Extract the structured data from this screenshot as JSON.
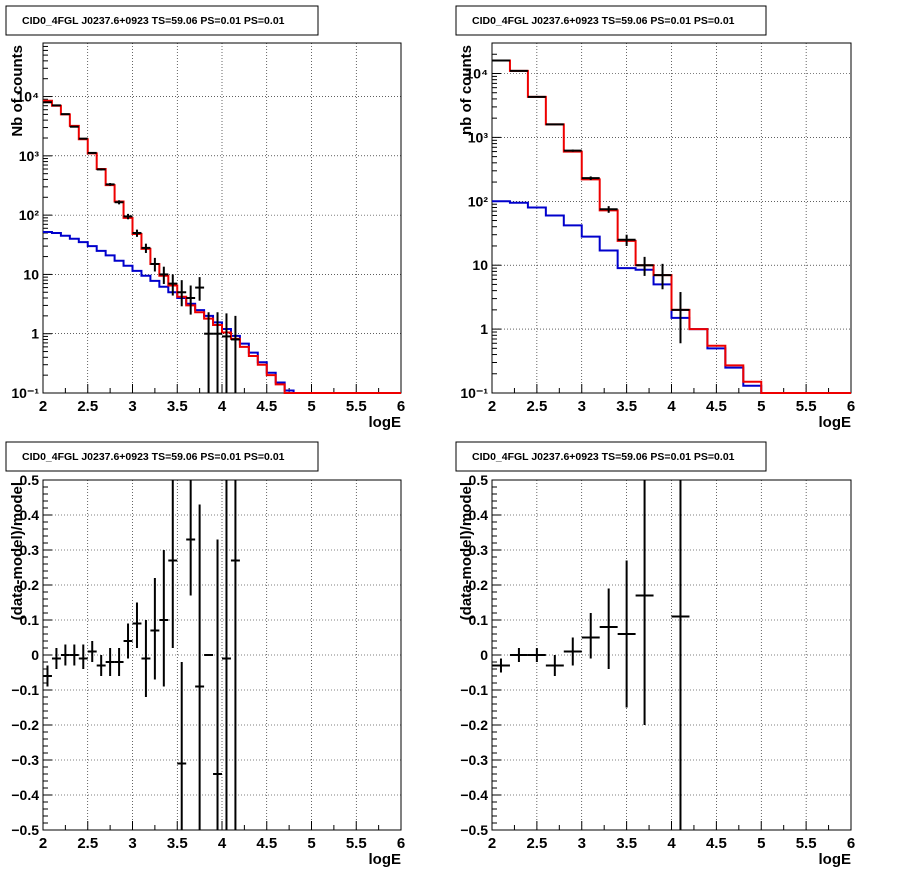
{
  "chart_data": [
    {
      "type": "line",
      "title": "CID0_4FGL J0237.6+0923 TS=59.06 PS=0.01 PS=0.01",
      "xlabel": "logE",
      "ylabel": "Nb of counts",
      "xlim": [
        2,
        6
      ],
      "ylim": [
        0.1,
        80000
      ],
      "yscale": "log",
      "grid": true,
      "x_ticks": [
        "2",
        "2.5",
        "3",
        "3.5",
        "4",
        "4.5",
        "5",
        "5.5",
        "6"
      ],
      "y_ticks": [
        "10⁻¹",
        "1",
        "10",
        "10²",
        "10³",
        "10⁴"
      ],
      "bin_edges": [
        2.0,
        2.1,
        2.2,
        2.3,
        2.4,
        2.5,
        2.6,
        2.7,
        2.8,
        2.9,
        3.0,
        3.1,
        3.2,
        3.3,
        3.4,
        3.5,
        3.6,
        3.7,
        3.8,
        3.9,
        4.0,
        4.1,
        4.2,
        4.3,
        4.4,
        4.5,
        4.6,
        4.7,
        4.8,
        4.9,
        5.0,
        5.1,
        5.2,
        5.3,
        5.4,
        5.5,
        5.6,
        5.7,
        5.8,
        5.9,
        6.0
      ],
      "series": [
        {
          "color": "#0000cc",
          "style": "hist",
          "values": [
            52,
            50,
            45,
            40,
            35,
            30,
            25,
            21,
            17,
            14,
            11.5,
            9.5,
            7.8,
            6.2,
            5.0,
            4.0,
            3.2,
            2.5,
            2.0,
            1.55,
            1.2,
            0.92,
            0.68,
            0.48,
            0.33,
            0.22,
            0.15,
            0.11,
            0.1,
            0.1,
            0.1,
            0.1,
            0.1,
            0.1,
            0.1,
            0.1,
            0.1,
            0.1,
            0.1,
            0.1
          ]
        },
        {
          "color": "#ee0000",
          "style": "hist",
          "values": [
            8500,
            7000,
            5000,
            3200,
            1900,
            1100,
            600,
            320,
            170,
            90,
            48,
            27,
            15,
            9.5,
            6.5,
            4.2,
            3.0,
            2.3,
            1.8,
            1.4,
            1.05,
            0.82,
            0.6,
            0.42,
            0.3,
            0.2,
            0.14,
            0.1,
            0.1,
            0.1,
            0.1,
            0.1,
            0.1,
            0.1,
            0.1,
            0.1,
            0.1,
            0.1,
            0.1,
            0.1
          ]
        },
        {
          "color": "#000000",
          "style": "errorbar",
          "x": [
            2.05,
            2.15,
            2.25,
            2.35,
            2.45,
            2.55,
            2.65,
            2.75,
            2.85,
            2.95,
            3.05,
            3.15,
            3.25,
            3.35,
            3.45,
            3.55,
            3.65,
            3.75,
            3.85,
            3.95,
            4.05,
            4.15
          ],
          "y": [
            8000,
            7100,
            5050,
            3100,
            1950,
            1120,
            590,
            330,
            165,
            95,
            50,
            28,
            15,
            10,
            7,
            5,
            4,
            6,
            1.0,
            1.0,
            0.9,
            0.8
          ],
          "ylo": [
            7900,
            7000,
            4950,
            3040,
            1905,
            1085,
            566,
            312,
            152,
            85,
            43,
            23,
            11.2,
            6.9,
            4.4,
            2.9,
            2.1,
            3.6,
            0.1,
            0.1,
            0.1,
            0.1
          ],
          "yhi": [
            8100,
            7200,
            5150,
            3160,
            1995,
            1155,
            614,
            348,
            178,
            105,
            57,
            33,
            19,
            13.5,
            10,
            8,
            6.5,
            9,
            2.3,
            2.3,
            2.2,
            2.0
          ]
        }
      ]
    },
    {
      "type": "line",
      "title": "CID0_4FGL J0237.6+0923 TS=59.06 PS=0.01 PS=0.01",
      "xlabel": "logE",
      "ylabel": "nb of counts",
      "xlim": [
        2,
        6
      ],
      "ylim": [
        0.1,
        30000
      ],
      "yscale": "log",
      "grid": true,
      "x_ticks": [
        "2",
        "2.5",
        "3",
        "3.5",
        "4",
        "4.5",
        "5",
        "5.5",
        "6"
      ],
      "y_ticks": [
        "10⁻¹",
        "1",
        "10",
        "10²",
        "10³",
        "10⁴"
      ],
      "bin_edges": [
        2.0,
        2.2,
        2.4,
        2.6,
        2.8,
        3.0,
        3.2,
        3.4,
        3.6,
        3.8,
        4.0,
        4.2,
        4.4,
        4.6,
        4.8,
        5.0,
        5.2,
        5.4,
        5.6,
        5.8,
        6.0
      ],
      "series": [
        {
          "color": "#0000cc",
          "style": "hist",
          "values": [
            100,
            95,
            80,
            60,
            42,
            28,
            17,
            9,
            8.5,
            5,
            1.5,
            1.0,
            0.5,
            0.25,
            0.13,
            0.1,
            0.1,
            0.1,
            0.1,
            0.1
          ]
        },
        {
          "color": "#ee0000",
          "style": "hist",
          "values": [
            16000,
            11000,
            4300,
            1600,
            600,
            220,
            72,
            24,
            10,
            7,
            2.0,
            1.0,
            0.55,
            0.27,
            0.15,
            0.1,
            0.1,
            0.1,
            0.1,
            0.1
          ]
        },
        {
          "color": "#000000",
          "style": "errorbar",
          "x": [
            2.1,
            2.3,
            2.5,
            2.7,
            2.9,
            3.1,
            3.3,
            3.5,
            3.7,
            3.9,
            4.1
          ],
          "y": [
            16000,
            11000,
            4300,
            1600,
            620,
            230,
            75,
            25,
            10,
            7,
            2
          ],
          "ylo": [
            15870,
            10900,
            4230,
            1560,
            595,
            215,
            66,
            20,
            6.8,
            4.2,
            0.6
          ],
          "yhi": [
            16130,
            11100,
            4370,
            1640,
            645,
            245,
            84,
            30,
            13.5,
            10.5,
            3.8
          ]
        }
      ]
    },
    {
      "type": "scatter",
      "title": "CID0_4FGL J0237.6+0923 TS=59.06 PS=0.01 PS=0.01",
      "xlabel": "logE",
      "ylabel": "(data-model)/model",
      "xlim": [
        2,
        6
      ],
      "ylim": [
        -0.5,
        0.5
      ],
      "grid": true,
      "x_ticks": [
        "2",
        "2.5",
        "3",
        "3.5",
        "4",
        "4.5",
        "5",
        "5.5",
        "6"
      ],
      "y_ticks": [
        "−0.5",
        "−0.4",
        "−0.3",
        "−0.2",
        "−0.1",
        "0",
        "0.1",
        "0.2",
        "0.3",
        "0.4",
        "0.5"
      ],
      "series": [
        {
          "color": "#000000",
          "style": "errorbar",
          "xerr": 0.05,
          "x": [
            2.05,
            2.15,
            2.25,
            2.35,
            2.45,
            2.55,
            2.65,
            2.75,
            2.85,
            2.95,
            3.05,
            3.15,
            3.25,
            3.35,
            3.45,
            3.55,
            3.65,
            3.75,
            3.85,
            3.95,
            4.05,
            4.15
          ],
          "y": [
            -0.06,
            -0.01,
            0.0,
            0.0,
            -0.01,
            0.01,
            -0.03,
            -0.02,
            -0.02,
            0.04,
            0.09,
            -0.01,
            0.07,
            0.1,
            0.27,
            -0.31,
            0.33,
            -0.09,
            0.0,
            -0.34,
            -0.01,
            0.27
          ],
          "ylo": [
            -0.09,
            -0.04,
            -0.03,
            -0.03,
            -0.04,
            -0.02,
            -0.06,
            -0.06,
            -0.06,
            -0.01,
            0.02,
            -0.12,
            -0.07,
            -0.09,
            0.02,
            -0.5,
            0.17,
            -0.5,
            0.0,
            -0.5,
            -0.5,
            -0.5
          ],
          "yhi": [
            -0.03,
            0.02,
            0.03,
            0.03,
            0.03,
            0.04,
            0.0,
            0.02,
            0.02,
            0.09,
            0.15,
            0.1,
            0.22,
            0.3,
            0.5,
            -0.02,
            0.5,
            0.43,
            0.0,
            0.33,
            0.5,
            0.5
          ]
        }
      ]
    },
    {
      "type": "scatter",
      "title": "CID0_4FGL J0237.6+0923 TS=59.06 PS=0.01 PS=0.01",
      "xlabel": "logE",
      "ylabel": "(data-model)/model",
      "xlim": [
        2,
        6
      ],
      "ylim": [
        -0.5,
        0.5
      ],
      "grid": true,
      "x_ticks": [
        "2",
        "2.5",
        "3",
        "3.5",
        "4",
        "4.5",
        "5",
        "5.5",
        "6"
      ],
      "y_ticks": [
        "−0.5",
        "−0.4",
        "−0.3",
        "−0.2",
        "−0.1",
        "0",
        "0.1",
        "0.2",
        "0.3",
        "0.4",
        "0.5"
      ],
      "series": [
        {
          "color": "#000000",
          "style": "errorbar",
          "xerr": 0.1,
          "x": [
            2.1,
            2.3,
            2.5,
            2.7,
            2.9,
            3.1,
            3.3,
            3.5,
            3.7,
            4.1
          ],
          "y": [
            -0.03,
            0.0,
            0.0,
            -0.03,
            0.01,
            0.05,
            0.08,
            0.06,
            0.17,
            0.11
          ],
          "ylo": [
            -0.05,
            -0.02,
            -0.02,
            -0.06,
            -0.03,
            -0.01,
            -0.04,
            -0.15,
            -0.2,
            -0.5
          ],
          "yhi": [
            -0.01,
            0.02,
            0.02,
            0.0,
            0.05,
            0.12,
            0.19,
            0.27,
            0.5,
            0.5
          ]
        }
      ]
    }
  ]
}
